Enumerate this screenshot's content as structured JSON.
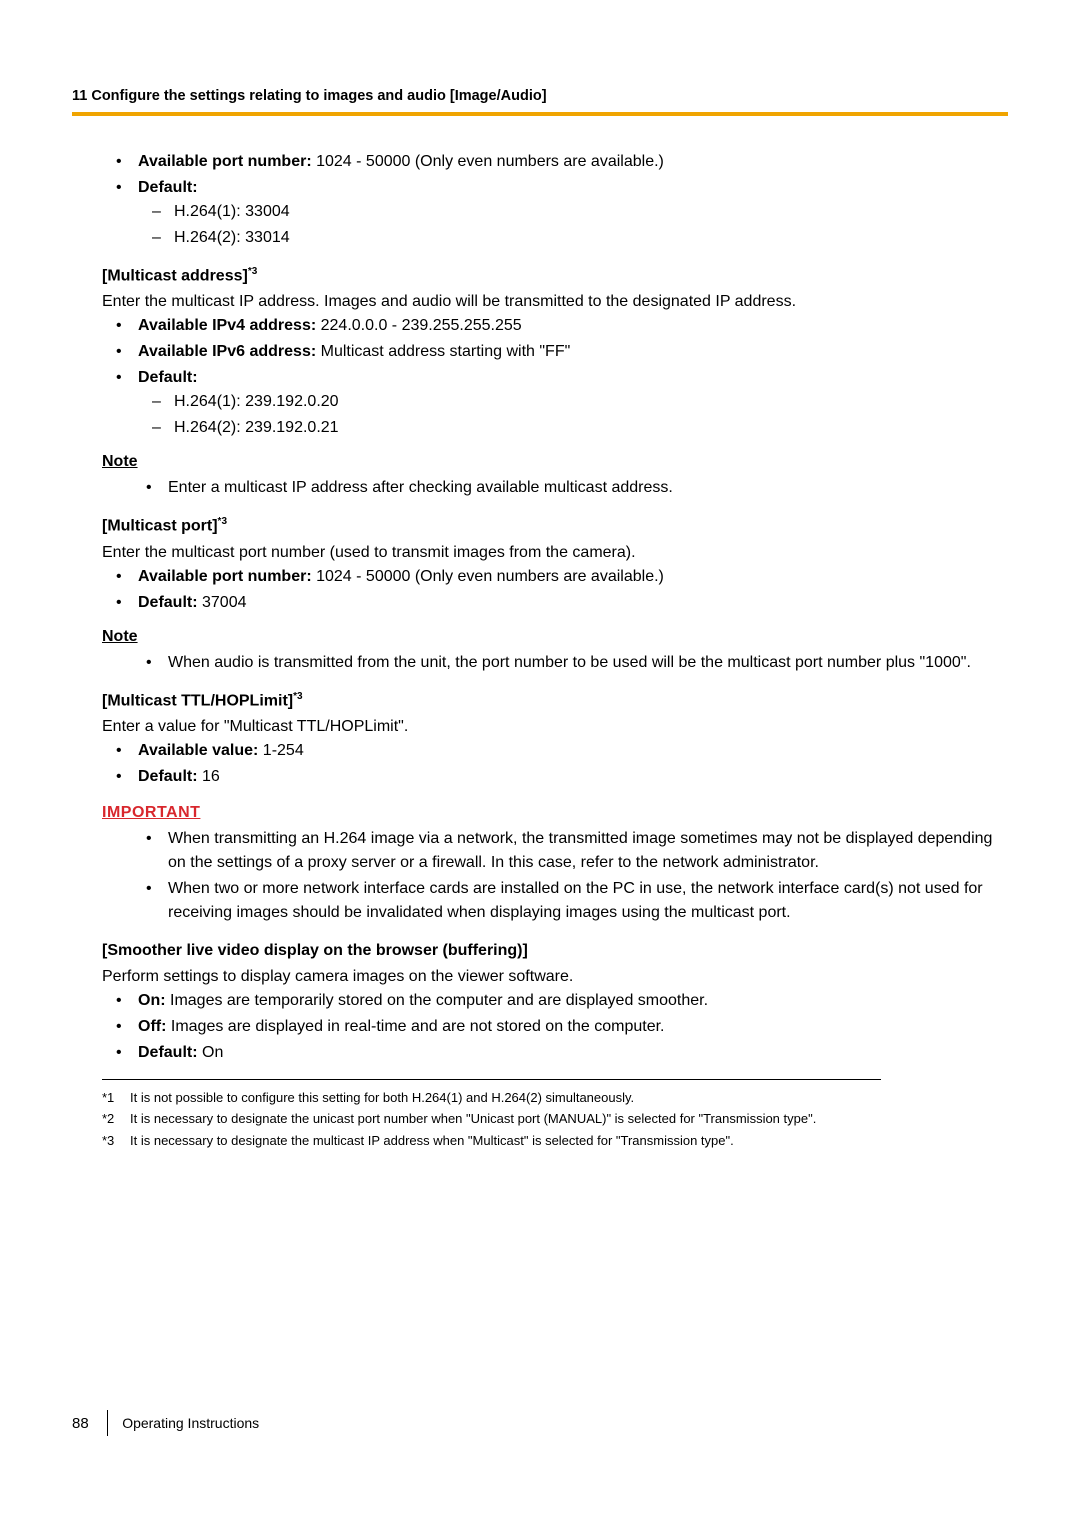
{
  "chapter_header": "11 Configure the settings relating to images and audio [Image/Audio]",
  "s1": {
    "avail_label": "Available port number:",
    "avail_value": " 1024 - 50000 (Only even numbers are available.)",
    "default_label": "Default:",
    "d1": "H.264(1): 33004",
    "d2": "H.264(2): 33014"
  },
  "s2": {
    "heading": "[Multicast address]",
    "sup": "*3",
    "desc": "Enter the multicast IP address. Images and audio will be transmitted to the designated IP address.",
    "ipv4_label": "Available IPv4 address:",
    "ipv4_value": " 224.0.0.0 - 239.255.255.255",
    "ipv6_label": "Available IPv6 address:",
    "ipv6_value": " Multicast address starting with \"FF\"",
    "default_label": "Default:",
    "d1": "H.264(1): 239.192.0.20",
    "d2": "H.264(2): 239.192.0.21",
    "note_label": "Note",
    "note_text": "Enter a multicast IP address after checking available multicast address."
  },
  "s3": {
    "heading": "[Multicast port]",
    "sup": "*3",
    "desc": "Enter the multicast port number (used to transmit images from the camera).",
    "avail_label": "Available port number:",
    "avail_value": " 1024 - 50000 (Only even numbers are available.)",
    "default_label": "Default:",
    "default_value": " 37004",
    "note_label": "Note",
    "note_text": "When audio is transmitted from the unit, the port number to be used will be the multicast port number plus \"1000\"."
  },
  "s4": {
    "heading": "[Multicast TTL/HOPLimit]",
    "sup": "*3",
    "desc": "Enter a value for \"Multicast TTL/HOPLimit\".",
    "avail_label": "Available value:",
    "avail_value": " 1-254",
    "default_label": "Default:",
    "default_value": " 16"
  },
  "important": {
    "heading": "IMPORTANT",
    "i1": "When transmitting an H.264 image via a network, the transmitted image sometimes may not be displayed depending on the settings of a proxy server or a firewall. In this case, refer to the network administrator.",
    "i2": "When two or more network interface cards are installed on the PC in use, the network interface card(s) not used for receiving images should be invalidated when displaying images using the multicast port."
  },
  "s5": {
    "heading": "[Smoother live video display on the browser (buffering)]",
    "desc": "Perform settings to display camera images on the viewer software.",
    "on_label": "On:",
    "on_text": " Images are temporarily stored on the computer and are displayed smoother.",
    "off_label": "Off:",
    "off_text": " Images are displayed in real-time and are not stored on the computer.",
    "default_label": "Default:",
    "default_value": " On"
  },
  "footnotes": {
    "m1": "*1",
    "t1": "It is not possible to configure this setting for both H.264(1) and H.264(2) simultaneously.",
    "m2": "*2",
    "t2": "It is necessary to designate the unicast port number when \"Unicast port (MANUAL)\" is selected for \"Transmission type\".",
    "m3": "*3",
    "t3": "It is necessary to designate the multicast IP address when \"Multicast\" is selected for \"Transmission type\"."
  },
  "footer": {
    "page": "88",
    "title": "Operating Instructions"
  }
}
